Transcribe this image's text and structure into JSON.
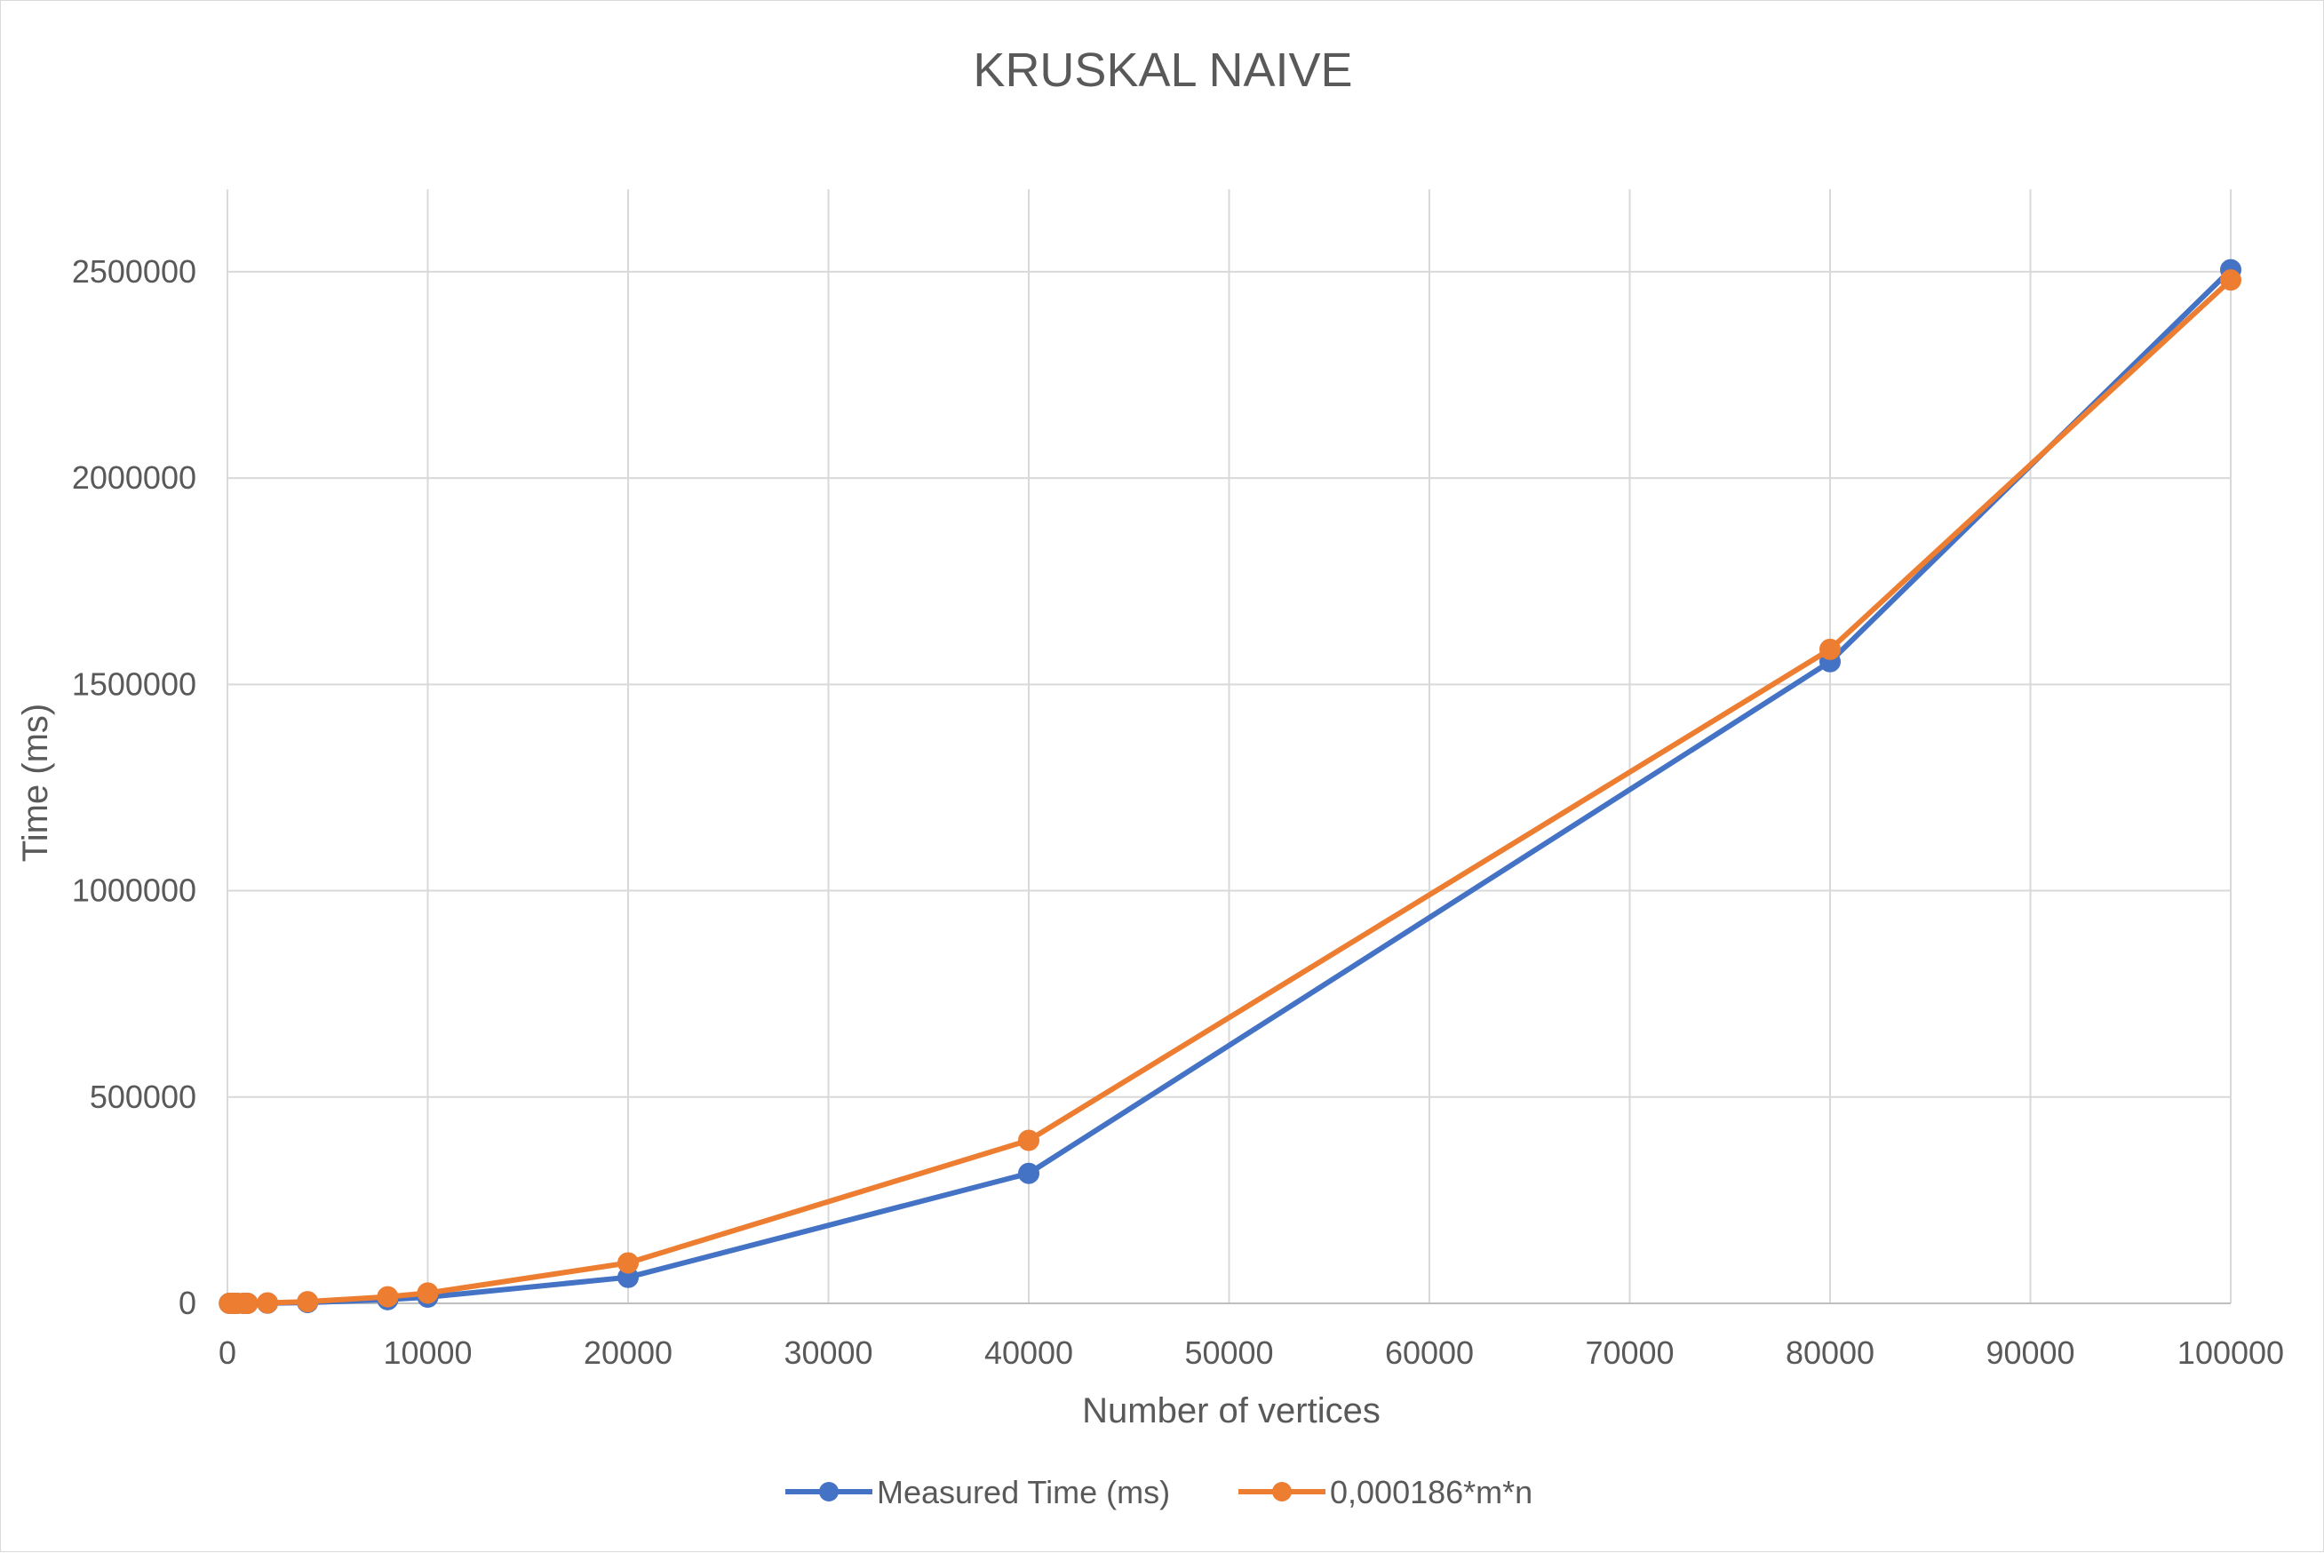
{
  "chart_data": {
    "type": "line",
    "title": "KRUSKAL NAIVE",
    "xlabel": "Number of vertices",
    "ylabel": "Time (ms)",
    "xlim": [
      0,
      100000
    ],
    "ylim": [
      0,
      2700000
    ],
    "x_ticks": [
      0,
      10000,
      20000,
      30000,
      40000,
      50000,
      60000,
      70000,
      80000,
      90000,
      100000
    ],
    "x_tick_labels": [
      "0",
      "10000",
      "20000",
      "30000",
      "40000",
      "50000",
      "60000",
      "70000",
      "80000",
      "90000",
      "100000"
    ],
    "y_ticks": [
      0,
      500000,
      1000000,
      1500000,
      2000000,
      2500000
    ],
    "y_tick_labels": [
      "0",
      "500000",
      "1000000",
      "1500000",
      "2000000",
      "2500000"
    ],
    "grid": true,
    "legend_position": "bottom",
    "series": [
      {
        "name": "Measured Time (ms)",
        "color": "#4472C4",
        "points": [
          [
            100,
            0
          ],
          [
            200,
            0
          ],
          [
            400,
            0
          ],
          [
            500,
            0
          ],
          [
            800,
            0
          ],
          [
            1000,
            0
          ],
          [
            2000,
            500
          ],
          [
            4000,
            2000
          ],
          [
            8000,
            9000
          ],
          [
            10000,
            15000
          ],
          [
            20000,
            63000
          ],
          [
            40000,
            315000
          ],
          [
            80000,
            1555000
          ],
          [
            100000,
            2505000
          ]
        ]
      },
      {
        "name": "0,000186*m*n",
        "color": "#ED7D31",
        "points": [
          [
            100,
            0
          ],
          [
            200,
            0
          ],
          [
            400,
            0
          ],
          [
            500,
            0
          ],
          [
            800,
            0
          ],
          [
            1000,
            0
          ],
          [
            2000,
            1000
          ],
          [
            4000,
            4000
          ],
          [
            8000,
            16000
          ],
          [
            10000,
            25000
          ],
          [
            20000,
            98000
          ],
          [
            40000,
            395000
          ],
          [
            80000,
            1585000
          ],
          [
            100000,
            2480000
          ]
        ]
      }
    ]
  }
}
